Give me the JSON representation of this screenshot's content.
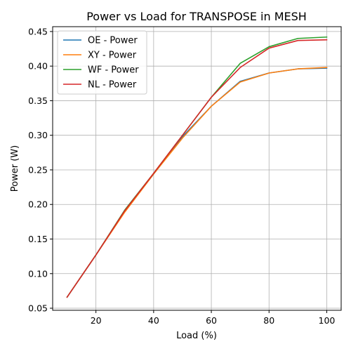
{
  "chart_data": {
    "type": "line",
    "title": "Power vs Load for TRANSPOSE in MESH",
    "xlabel": "Load (%)",
    "ylabel": "Power (W)",
    "xlim": [
      5,
      105
    ],
    "ylim": [
      0.047,
      0.457
    ],
    "xticks": [
      20,
      40,
      60,
      80,
      100
    ],
    "yticks": [
      0.05,
      0.1,
      0.15,
      0.2,
      0.25,
      0.3,
      0.35,
      0.4,
      0.45
    ],
    "xtick_labels": [
      "20",
      "40",
      "60",
      "80",
      "100"
    ],
    "ytick_labels": [
      "0.05",
      "0.10",
      "0.15",
      "0.20",
      "0.25",
      "0.30",
      "0.35",
      "0.40",
      "0.45"
    ],
    "grid": true,
    "legend_position": "upper-left",
    "x": [
      10,
      20,
      30,
      40,
      50,
      60,
      70,
      80,
      90,
      100
    ],
    "series": [
      {
        "name": "OE - Power",
        "color": "#1f77b4",
        "values": [
          0.066,
          0.127,
          0.19,
          0.244,
          0.298,
          0.342,
          0.378,
          0.39,
          0.396,
          0.397
        ]
      },
      {
        "name": "XY - Power",
        "color": "#ff7f0e",
        "values": [
          0.066,
          0.127,
          0.189,
          0.244,
          0.296,
          0.342,
          0.377,
          0.39,
          0.396,
          0.398
        ]
      },
      {
        "name": "WF - Power",
        "color": "#2ca02c",
        "values": [
          0.066,
          0.127,
          0.192,
          0.245,
          0.3,
          0.355,
          0.404,
          0.428,
          0.44,
          0.442
        ]
      },
      {
        "name": "NL - Power",
        "color": "#d62728",
        "values": [
          0.066,
          0.127,
          0.191,
          0.245,
          0.3,
          0.355,
          0.398,
          0.426,
          0.437,
          0.438
        ]
      }
    ]
  }
}
